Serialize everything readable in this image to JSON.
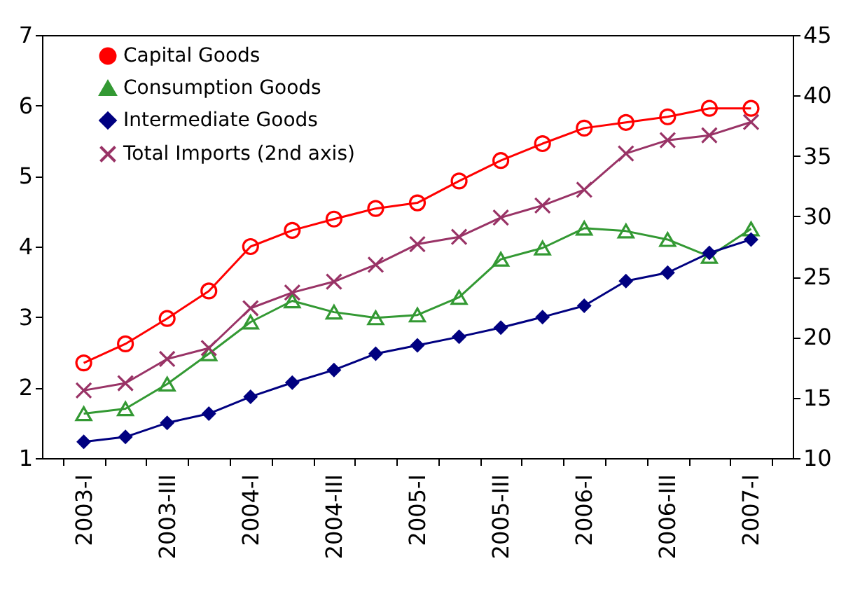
{
  "chart_data": {
    "type": "line",
    "categories": [
      "2003-I",
      null,
      "2003-III",
      null,
      "2004-I",
      null,
      "2004-III",
      null,
      "2005-I",
      null,
      "2005-III",
      null,
      "2006-I",
      null,
      "2006-III",
      null,
      "2007-I"
    ],
    "series": [
      {
        "name": "Capital Goods",
        "color": "#ff0000",
        "marker": "circle",
        "values": [
          2.35,
          2.62,
          2.98,
          3.37,
          4.0,
          4.23,
          4.39,
          4.54,
          4.62,
          4.93,
          5.22,
          5.46,
          5.68,
          5.76,
          5.84,
          5.96,
          5.96
        ]
      },
      {
        "name": "Consumption Goods",
        "color": "#339933",
        "marker": "triangle",
        "values": [
          1.63,
          1.7,
          2.05,
          2.48,
          2.93,
          3.23,
          3.07,
          2.99,
          3.03,
          3.28,
          3.82,
          3.98,
          4.26,
          4.22,
          4.1,
          3.86,
          4.25
        ]
      },
      {
        "name": "Intermediate Goods",
        "color": "#000080",
        "marker": "diamond",
        "values": [
          1.23,
          1.3,
          1.5,
          1.63,
          1.87,
          2.07,
          2.25,
          2.48,
          2.6,
          2.72,
          2.85,
          3.0,
          3.16,
          3.51,
          3.63,
          3.91,
          4.1
        ]
      },
      {
        "name": "Total Imports (2nd axis)",
        "color": "#993366",
        "marker": "cross",
        "axis": "y2",
        "values": [
          15.6,
          16.2,
          18.2,
          19.1,
          22.4,
          23.7,
          24.6,
          26.0,
          27.7,
          28.3,
          29.9,
          30.9,
          32.2,
          35.2,
          36.3,
          36.7,
          37.8
        ]
      }
    ],
    "ylim": [
      1,
      7
    ],
    "yticks": [
      1,
      2,
      3,
      4,
      5,
      6,
      7
    ],
    "y2lim": [
      10,
      45
    ],
    "y2ticks": [
      10,
      15,
      20,
      25,
      30,
      35,
      40,
      45
    ],
    "legend": "top left"
  }
}
